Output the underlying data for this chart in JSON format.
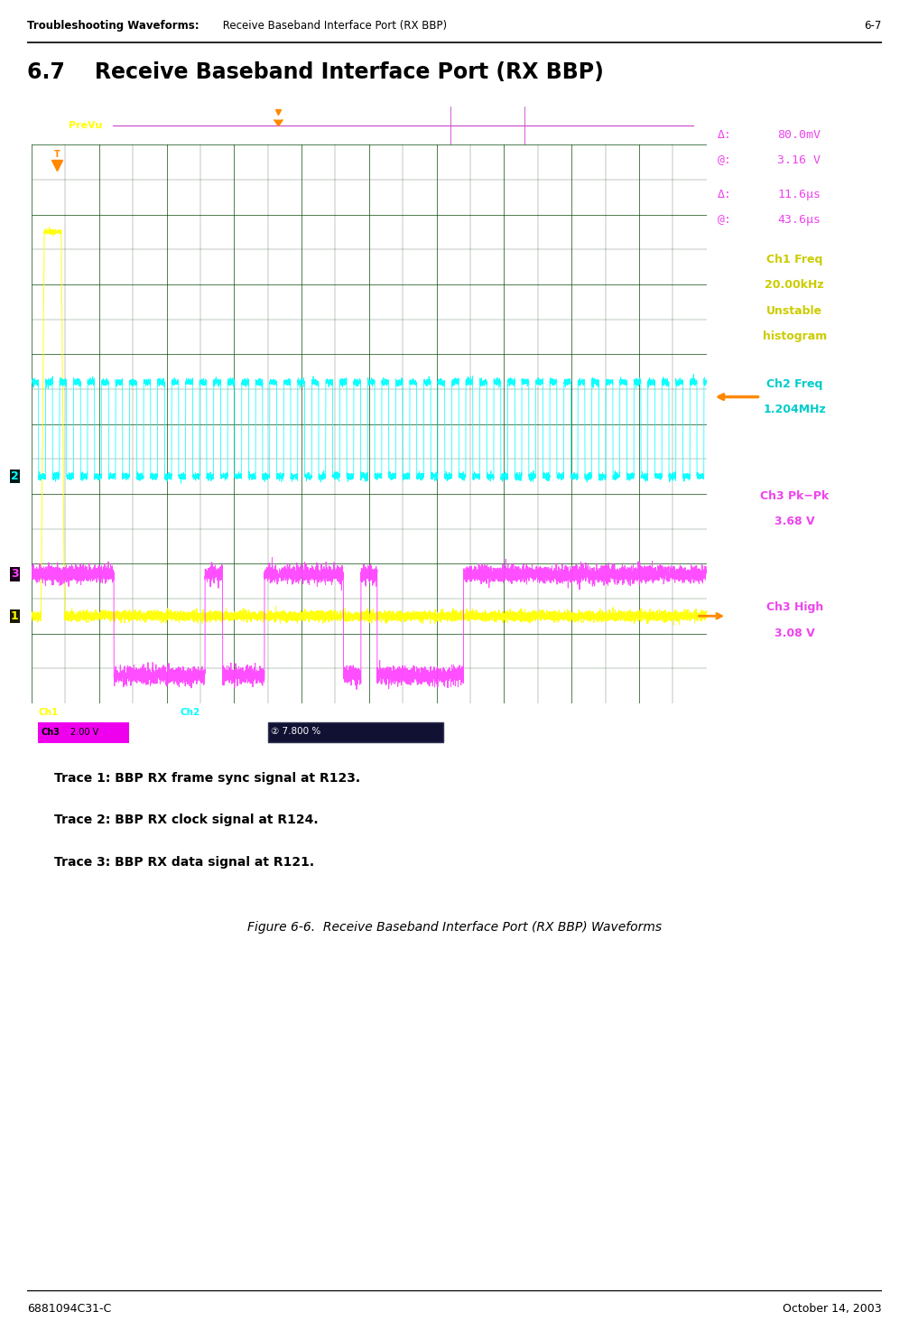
{
  "page_header_left": "Troubleshooting Waveforms: Receive Baseband Interface Port (RX BBP)",
  "page_header_right": "6-7",
  "section_title": "6.7    Receive Baseband Interface Port (RX BBP)",
  "ch1_color": "#ffff00",
  "ch2_color": "#00ffff",
  "ch3_color": "#ff44ff",
  "marker_color": "#ff8800",
  "right_panel_bg": "#0a1a2e",
  "osc_screen_bg": "#000000",
  "osc_outer_bg": "#0d1b2e",
  "grid_major_color": "#004400",
  "grid_minor_color": "#002200",
  "topbar_bg": "#1a1040",
  "botbar_bg": "#001122",
  "trace1_label": "Trace 1: BBP RX frame sync signal at R123.",
  "trace2_label": "Trace 2: BBP RX clock signal at R124.",
  "trace3_label": "Trace 3: BBP RX data signal at R121.",
  "figure_caption": "Figure 6-6.  Receive Baseband Interface Port (RX BBP) Waveforms",
  "page_footer_left": "6881094C31-C",
  "page_footer_right": "October 14, 2003"
}
